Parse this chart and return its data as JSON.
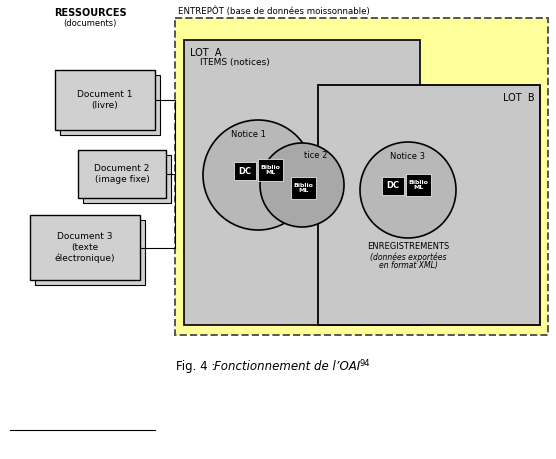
{
  "bg_color": "#ffffff",
  "yellow_bg": "#ffff99",
  "gray_lota": "#c8c8c8",
  "gray_lotb": "#c8c8c8",
  "gray_doc": "#d0d0d0",
  "gray_notice": "#b0b0b0",
  "black": "#000000",
  "white": "#ffffff",
  "ressources_label": "RESSOURCES",
  "ressources_sub": "(documents)",
  "entrepot_label": "ENTREPÔT (base de données moissonnable)",
  "lot_a_label": "LOT  A",
  "lot_b_label": "LOT  B",
  "items_label": "ITEMS (notices)",
  "notice1_label": "Notice 1",
  "notice2_label": "tice 2",
  "notice3_label": "Notice 3",
  "dc_label": "DC",
  "biblio_ml_label": "Biblio\nML",
  "enreg_label": "ENREGISTREMENTS",
  "enreg_sub1": "(données exportées",
  "enreg_sub2": "en format XML)",
  "doc1_label": "Document 1\n(livre)",
  "doc2_label": "Document 2\n(image fixe)",
  "doc3_label": "Document 3\n(texte\nélectronique)",
  "caption_plain": "Fig. 4 : ",
  "caption_italic": "Fonctionnement de l’OAI",
  "caption_super": "94"
}
